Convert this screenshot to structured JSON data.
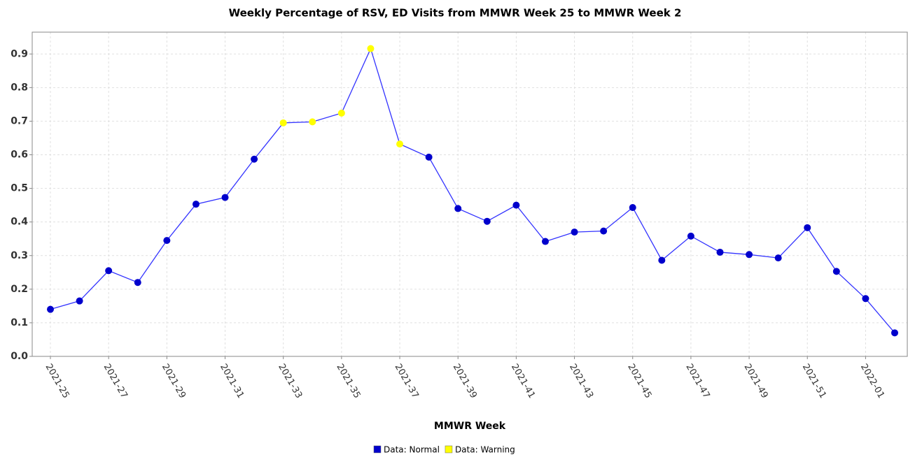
{
  "chart_data": {
    "type": "line",
    "title": "Weekly Percentage of RSV, ED Visits from MMWR Week 25 to MMWR Week 2",
    "x_label": "MMWR Week",
    "categories": [
      "2021-25",
      null,
      "2021-27",
      null,
      "2021-29",
      null,
      "2021-31",
      null,
      "2021-33",
      null,
      "2021-35",
      null,
      "2021-37",
      null,
      "2021-39",
      null,
      "2021-41",
      null,
      "2021-43",
      null,
      "2021-45",
      null,
      "2021-47",
      null,
      "2021-49",
      null,
      "2021-51",
      null,
      "2022-01",
      null
    ],
    "values": [
      0.14,
      0.165,
      0.255,
      0.22,
      0.345,
      0.453,
      0.473,
      0.587,
      0.695,
      0.698,
      0.724,
      0.916,
      0.632,
      0.593,
      0.44,
      0.402,
      0.45,
      0.342,
      0.37,
      0.373,
      0.443,
      0.286,
      0.358,
      0.31,
      0.303,
      0.293,
      0.383,
      0.253,
      0.172,
      0.07
    ],
    "line_color": "#3333ff",
    "point_colors": [
      "#0000cc",
      "#0000cc",
      "#0000cc",
      "#0000cc",
      "#0000cc",
      "#0000cc",
      "#0000cc",
      "#0000cc",
      "#ffff00",
      "#ffff00",
      "#ffff00",
      "#ffff00",
      "#ffff00",
      "#0000cc",
      "#0000cc",
      "#0000cc",
      "#0000cc",
      "#0000cc",
      "#0000cc",
      "#0000cc",
      "#0000cc",
      "#0000cc",
      "#0000cc",
      "#0000cc",
      "#0000cc",
      "#0000cc",
      "#0000cc",
      "#0000cc",
      "#0000cc",
      "#0000cc"
    ],
    "legend": [
      {
        "label": "Data: Normal",
        "color": "#0000cc"
      },
      {
        "label": "Data: Warning",
        "color": "#ffff00"
      }
    ],
    "ylim": [
      0,
      0.965
    ],
    "yticks": [
      {
        "value": 0,
        "label": "0.0"
      },
      0.1,
      0.2,
      0.3,
      0.4,
      0.5,
      0.6,
      0.7,
      0.8,
      0.9
    ],
    "grid": true
  }
}
